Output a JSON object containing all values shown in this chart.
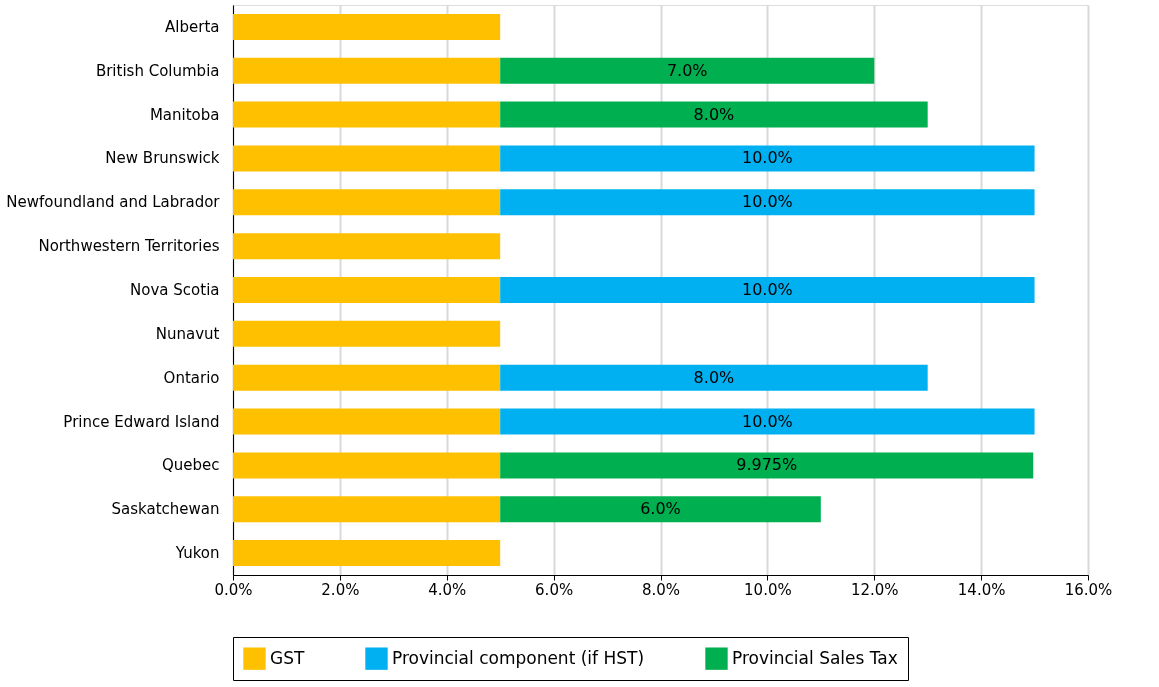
{
  "chart_data": {
    "type": "bar",
    "orientation": "horizontal",
    "stacked": true,
    "categories": [
      "Alberta",
      "British Columbia",
      "Manitoba",
      "New Brunswick",
      "Newfoundland and Labrador",
      "Northwestern Territories",
      "Nova Scotia",
      "Nunavut",
      "Ontario",
      "Prince Edward Island",
      "Quebec",
      "Saskatchewan",
      "Yukon"
    ],
    "series": [
      {
        "name": "GST",
        "color": "#ffc000",
        "values": [
          5,
          5,
          5,
          5,
          5,
          5,
          5,
          5,
          5,
          5,
          5,
          5,
          5
        ]
      },
      {
        "name": "Provincial component (if HST)",
        "color": "#00b0f0",
        "values": [
          null,
          null,
          null,
          10,
          10,
          null,
          10,
          null,
          8,
          10,
          null,
          null,
          null
        ],
        "value_labels": [
          null,
          null,
          null,
          "10.0%",
          "10.0%",
          null,
          "10.0%",
          null,
          "8.0%",
          "10.0%",
          null,
          null,
          null
        ]
      },
      {
        "name": "Provincial Sales Tax",
        "color": "#00b050",
        "values": [
          null,
          7,
          8,
          null,
          null,
          null,
          null,
          null,
          null,
          null,
          9.975,
          6,
          null
        ],
        "value_labels": [
          null,
          "7.0%",
          "8.0%",
          null,
          null,
          null,
          null,
          null,
          null,
          null,
          "9.975%",
          "6.0%",
          null
        ]
      }
    ],
    "xlim": [
      0,
      16
    ],
    "xticks": [
      {
        "value": 0,
        "label": "0.0%"
      },
      {
        "value": 2,
        "label": "2.0%"
      },
      {
        "value": 4,
        "label": "4.0%"
      },
      {
        "value": 6,
        "label": "6.0%"
      },
      {
        "value": 8,
        "label": "8.0%"
      },
      {
        "value": 10,
        "label": "10.0%"
      },
      {
        "value": 12,
        "label": "12.0%"
      },
      {
        "value": 14,
        "label": "14.0%"
      },
      {
        "value": 16,
        "label": "16.0%"
      }
    ],
    "grid": "x",
    "legend": "bottom"
  }
}
